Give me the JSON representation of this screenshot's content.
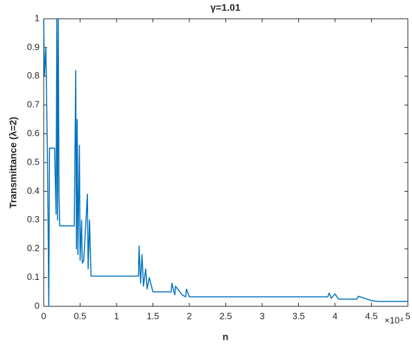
{
  "chart_data": {
    "type": "line",
    "title": "γ=1.01",
    "xlabel": "n",
    "ylabel": "Transmittance (λ=2)",
    "x_multiplier": "×10⁴",
    "x": [
      0,
      0.01,
      0.03,
      0.05,
      0.06,
      0.07,
      0.08,
      0.1,
      0.15,
      0.17,
      0.18,
      0.19,
      0.2,
      0.21,
      0.22,
      0.23,
      0.25,
      0.42,
      0.44,
      0.45,
      0.46,
      0.47,
      0.49,
      0.5,
      0.52,
      0.53,
      0.55,
      0.6,
      0.61,
      0.63,
      0.65,
      0.66,
      1.3,
      1.31,
      1.33,
      1.35,
      1.37,
      1.4,
      1.42,
      1.45,
      1.5,
      1.75,
      1.76,
      1.8,
      1.81,
      1.9,
      1.95,
      1.96,
      2.0,
      3.9,
      3.92,
      3.95,
      4.0,
      4.05,
      4.1,
      4.3,
      4.32,
      4.5,
      4.6,
      5.0
    ],
    "series": [
      {
        "color": "#0072bd",
        "values": [
          1,
          0.8,
          0.9,
          0.55,
          0.3,
          0,
          0.55,
          0.55,
          0.55,
          0.32,
          1,
          0.3,
          1,
          0.4,
          0.28,
          0.28,
          0.28,
          0.28,
          0.82,
          0.2,
          0.65,
          0.18,
          0.56,
          0.16,
          0.3,
          0.15,
          0.16,
          0.39,
          0.13,
          0.3,
          0.105,
          0.105,
          0.105,
          0.21,
          0.08,
          0.18,
          0.07,
          0.13,
          0.06,
          0.1,
          0.05,
          0.05,
          0.08,
          0.04,
          0.07,
          0.04,
          0.033,
          0.06,
          0.033,
          0.033,
          0.046,
          0.028,
          0.043,
          0.025,
          0.025,
          0.025,
          0.035,
          0.02,
          0.017,
          0.017
        ]
      }
    ],
    "xlim": [
      0,
      5
    ],
    "xticks": [
      0,
      0.5,
      1,
      1.5,
      2,
      2.5,
      3,
      3.5,
      4,
      4.5,
      5
    ],
    "ylim": [
      0,
      1
    ],
    "yticks": [
      0,
      0.1,
      0.2,
      0.3,
      0.4,
      0.5,
      0.6,
      0.7,
      0.8,
      0.9,
      1
    ]
  }
}
